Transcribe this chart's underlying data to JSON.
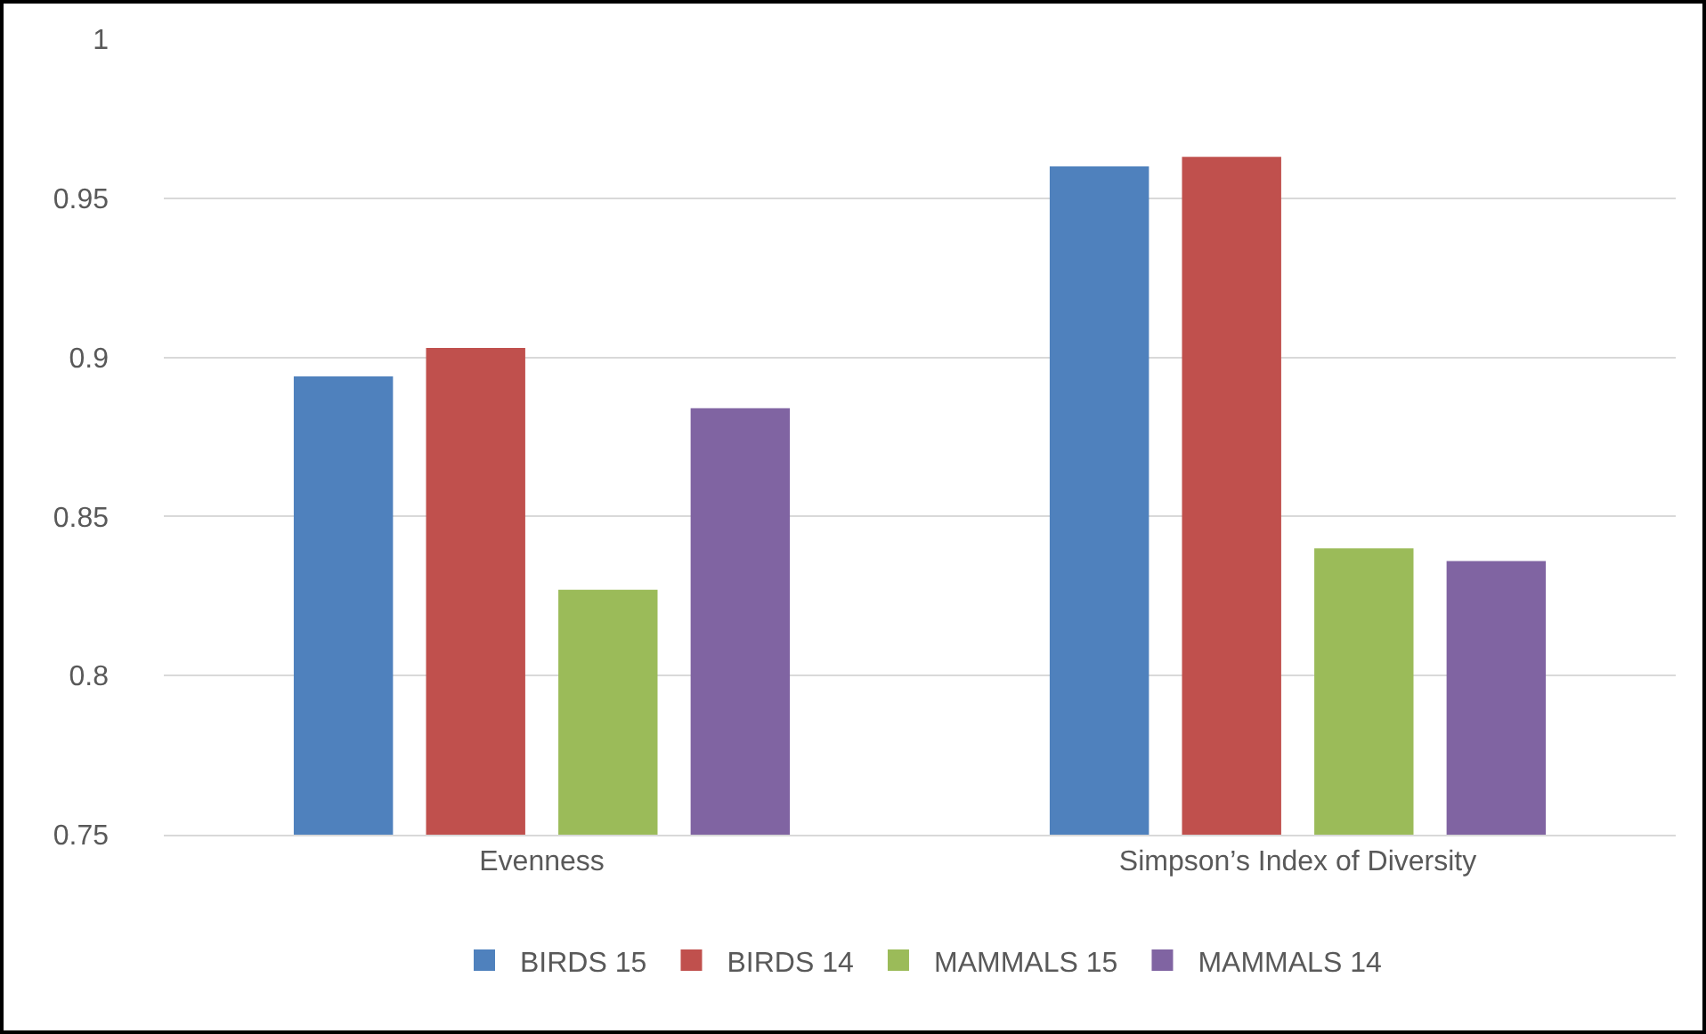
{
  "chart_data": {
    "type": "bar",
    "categories": [
      "Evenness",
      "Simpson’s Index of Diversity"
    ],
    "series": [
      {
        "name": "BIRDS 15",
        "color": "#4f81bd",
        "values": [
          0.894,
          0.96
        ]
      },
      {
        "name": "BIRDS 14",
        "color": "#c0504d",
        "values": [
          0.903,
          0.963
        ]
      },
      {
        "name": "MAMMALS 15",
        "color": "#9bbb59",
        "values": [
          0.827,
          0.84
        ]
      },
      {
        "name": "MAMMALS 14",
        "color": "#8064a2",
        "values": [
          0.884,
          0.836
        ]
      }
    ],
    "ylim": [
      0.75,
      1
    ],
    "yticks": [
      0.75,
      0.8,
      0.85,
      0.9,
      0.95,
      1
    ],
    "grid": "y",
    "legend": "bottom"
  }
}
